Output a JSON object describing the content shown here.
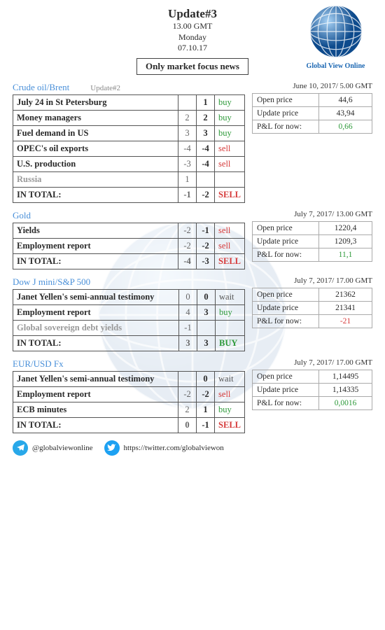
{
  "header": {
    "title": "Update#3",
    "time": "13.00 GMT",
    "day": "Monday",
    "date": "07.10.17",
    "focus": "Only market focus news",
    "brand": "Global View Online"
  },
  "sections": [
    {
      "title": "Crude oil/Brent",
      "update_label": "Update#2",
      "price_head": "June 10, 2017/ 5.00 GMT",
      "prices": {
        "open_k": "Open price",
        "open_v": "44,6",
        "upd_k": "Update price",
        "upd_v": "43,94",
        "pnl_k": "P&L for now:",
        "pnl_v": "0,66",
        "pnl_positive": true
      },
      "rows": [
        {
          "label": "July 24 in St Petersburg",
          "a": "",
          "b": "1",
          "sig": "buy",
          "sigcls": "buy"
        },
        {
          "label": "Money managers",
          "a": "2",
          "b": "2",
          "sig": "buy",
          "sigcls": "buy"
        },
        {
          "label": "Fuel demand in US",
          "a": "3",
          "b": "3",
          "sig": "buy",
          "sigcls": "buy"
        },
        {
          "label": "OPEC's oil exports",
          "a": "-4",
          "b": "-4",
          "sig": "sell",
          "sigcls": "sell"
        },
        {
          "label": "U.S. production",
          "a": "-3",
          "b": "-4",
          "sig": "sell",
          "sigcls": "sell"
        },
        {
          "label": "Russia",
          "a": "1",
          "b": "",
          "sig": "",
          "sigcls": "",
          "muted": true
        }
      ],
      "total": {
        "label": "IN TOTAL:",
        "a": "-1",
        "b": "-2",
        "sig": "SELL",
        "sigcls": "sell"
      }
    },
    {
      "title": "Gold",
      "update_label": "",
      "price_head": "July 7, 2017/ 13.00 GMT",
      "prices": {
        "open_k": "Open price",
        "open_v": "1220,4",
        "upd_k": "Update price",
        "upd_v": "1209,3",
        "pnl_k": "P&L for now:",
        "pnl_v": "11,1",
        "pnl_positive": true
      },
      "rows": [
        {
          "label": "Yields",
          "a": "-2",
          "b": "-1",
          "sig": "sell",
          "sigcls": "sell"
        },
        {
          "label": "Employment report",
          "a": "-2",
          "b": "-2",
          "sig": "sell",
          "sigcls": "sell"
        }
      ],
      "total": {
        "label": "IN TOTAL:",
        "a": "-4",
        "b": "-3",
        "sig": "SELL",
        "sigcls": "sell"
      }
    },
    {
      "title": "Dow J mini/S&P 500",
      "update_label": "",
      "price_head": "July 7, 2017/ 17.00 GMT",
      "prices": {
        "open_k": "Open price",
        "open_v": "21362",
        "upd_k": "Update price",
        "upd_v": "21341",
        "pnl_k": "P&L for now:",
        "pnl_v": "-21",
        "pnl_positive": false
      },
      "rows": [
        {
          "label": "Janet Yellen's semi-annual testimony",
          "a": "0",
          "b": "0",
          "sig": "wait",
          "sigcls": "wait"
        },
        {
          "label": "Employment report",
          "a": "4",
          "b": "3",
          "sig": "buy",
          "sigcls": "buy"
        },
        {
          "label": "Global sovereign debt yields",
          "a": "-1",
          "b": "",
          "sig": "",
          "sigcls": "",
          "muted": true
        }
      ],
      "total": {
        "label": "IN TOTAL:",
        "a": "3",
        "b": "3",
        "sig": "BUY",
        "sigcls": "buy"
      }
    },
    {
      "title": "EUR/USD Fx",
      "update_label": "",
      "price_head": "July 7, 2017/ 17.00 GMT",
      "prices": {
        "open_k": "Open price",
        "open_v": "1,14495",
        "upd_k": "Update price",
        "upd_v": "1,14335",
        "pnl_k": "P&L for now:",
        "pnl_v": "0,0016",
        "pnl_positive": true
      },
      "rows": [
        {
          "label": "Janet Yellen's semi-annual testimony",
          "a": "",
          "b": "0",
          "sig": "wait",
          "sigcls": "wait"
        },
        {
          "label": "Employment report",
          "a": "-2",
          "b": "-2",
          "sig": "sell",
          "sigcls": "sell"
        },
        {
          "label": "ECB minutes",
          "a": "2",
          "b": "1",
          "sig": "buy",
          "sigcls": "buy"
        }
      ],
      "total": {
        "label": "IN TOTAL:",
        "a": "0",
        "b": "-1",
        "sig": "SELL",
        "sigcls": "sell"
      }
    }
  ],
  "footer": {
    "telegram": "@globalviewonline",
    "twitter": "https://twitter.com/globalviewon"
  },
  "colors": {
    "accent": "#4a90d9",
    "buy": "#2e9a3a",
    "sell": "#d63a3a"
  }
}
